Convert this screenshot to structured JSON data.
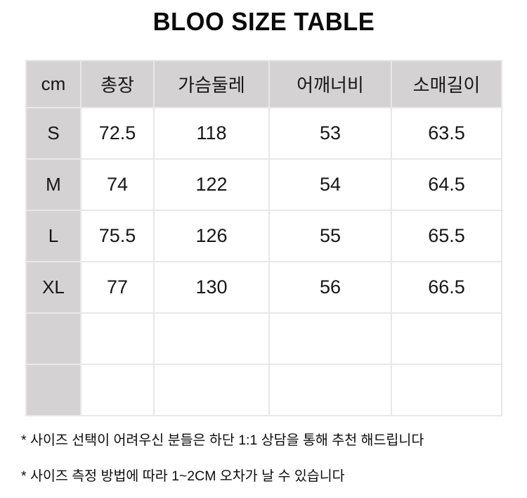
{
  "title": "BLOO SIZE TABLE",
  "table": {
    "unit_label": "cm",
    "columns": [
      "총장",
      "가슴둘레",
      "어깨너비",
      "소매길이"
    ],
    "rows": [
      {
        "size": "S",
        "values": [
          "72.5",
          "118",
          "53",
          "63.5"
        ]
      },
      {
        "size": "M",
        "values": [
          "74",
          "122",
          "54",
          "64.5"
        ]
      },
      {
        "size": "L",
        "values": [
          "75.5",
          "126",
          "55",
          "65.5"
        ]
      },
      {
        "size": "XL",
        "values": [
          "77",
          "130",
          "56",
          "66.5"
        ]
      },
      {
        "size": "",
        "values": [
          "",
          "",
          "",
          ""
        ]
      },
      {
        "size": "",
        "values": [
          "",
          "",
          "",
          ""
        ]
      }
    ]
  },
  "notes": [
    "* 사이즈 선택이 어려우신 분들은 하단 1:1 상담을 통해 추천 해드립니다",
    "* 사이즈 측정 방법에 따라 1~2CM 오차가 날 수 있습니다"
  ],
  "colors": {
    "header_bg": "#d5d2d3",
    "cell_bg": "#ffffff",
    "border": "#e9e7e8",
    "text": "#161616"
  },
  "chart_data": {
    "type": "table",
    "title": "BLOO SIZE TABLE",
    "unit": "cm",
    "columns": [
      "총장",
      "가슴둘레",
      "어깨너비",
      "소매길이"
    ],
    "rows": [
      {
        "size": "S",
        "values": [
          72.5,
          118,
          53,
          63.5
        ]
      },
      {
        "size": "M",
        "values": [
          74,
          122,
          54,
          64.5
        ]
      },
      {
        "size": "L",
        "values": [
          75.5,
          126,
          55,
          65.5
        ]
      },
      {
        "size": "XL",
        "values": [
          77,
          130,
          56,
          66.5
        ]
      }
    ],
    "empty_trailing_rows": 2,
    "notes": [
      "* 사이즈 선택이 어려우신 분들은 하단 1:1 상담을 통해 추천 해드립니다",
      "* 사이즈 측정 방법에 따라 1~2CM 오차가 날 수 있습니다"
    ],
    "layout_hints": {
      "header_row_shaded": true,
      "first_column_shaded": true,
      "grid": true
    }
  }
}
